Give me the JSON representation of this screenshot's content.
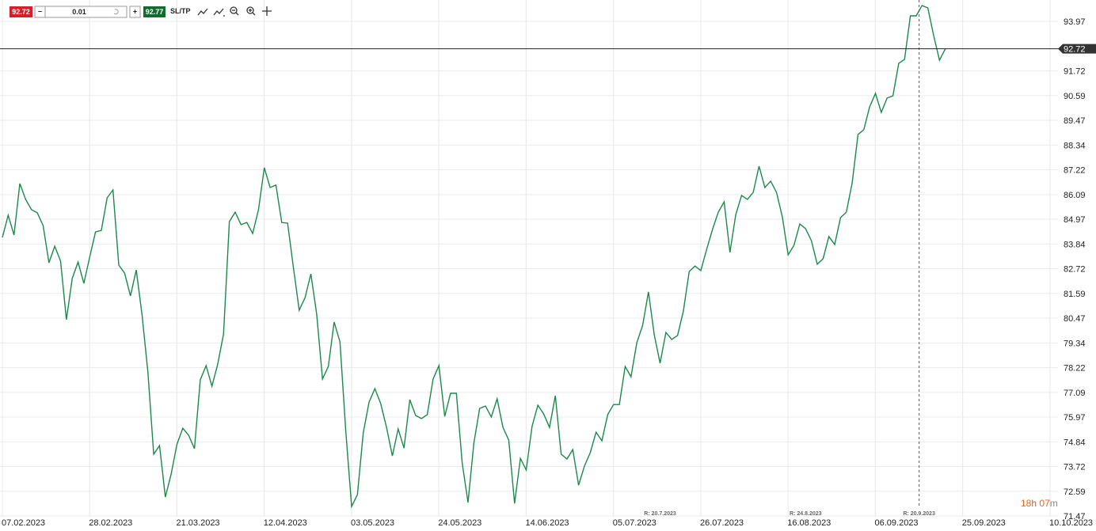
{
  "toolbar": {
    "bid": "92.72",
    "minus": "−",
    "volume": "0.01",
    "plus": "+",
    "ask": "92.77",
    "sltp": "SL/TP"
  },
  "countdown": {
    "hours": "18",
    "h": "h",
    "minutes": "07",
    "m": "m"
  },
  "chart_data": {
    "type": "line",
    "categories": [
      "07.02.2023",
      null,
      null,
      null,
      null,
      null,
      null,
      null,
      null,
      null,
      null,
      null,
      null,
      null,
      null,
      "28.02.2023",
      null,
      null,
      null,
      null,
      null,
      null,
      null,
      null,
      null,
      null,
      null,
      null,
      null,
      null,
      "21.03.2023",
      null,
      null,
      null,
      null,
      null,
      null,
      null,
      null,
      null,
      null,
      null,
      null,
      null,
      null,
      "12.04.2023",
      null,
      null,
      null,
      null,
      null,
      null,
      null,
      null,
      null,
      null,
      null,
      null,
      null,
      null,
      "03.05.2023",
      null,
      null,
      null,
      null,
      null,
      null,
      null,
      null,
      null,
      null,
      null,
      null,
      null,
      null,
      "24.05.2023",
      null,
      null,
      null,
      null,
      null,
      null,
      null,
      null,
      null,
      null,
      null,
      null,
      null,
      null,
      "14.06.2023",
      null,
      null,
      null,
      null,
      null,
      null,
      null,
      null,
      null,
      null,
      null,
      null,
      null,
      null,
      "05.07.2023",
      null,
      null,
      null,
      null,
      null,
      null,
      null,
      null,
      null,
      null,
      null,
      null,
      null,
      null,
      "26.07.2023",
      null,
      null,
      null,
      null,
      null,
      null,
      null,
      null,
      null,
      null,
      null,
      null,
      null,
      null,
      "16.08.2023",
      null,
      null,
      null,
      null,
      null,
      null,
      null,
      null,
      null,
      null,
      null,
      null,
      null,
      null,
      "06.09.2023",
      null,
      null,
      null,
      null,
      null,
      null,
      null,
      null,
      null,
      null,
      null,
      null,
      null,
      null,
      "25.09.2023",
      null,
      null,
      null,
      null,
      null,
      null,
      null,
      null,
      null,
      null,
      null,
      null,
      null,
      null,
      "10.10.2023"
    ],
    "series": [
      {
        "color": "#1a8a4a",
        "values": [
          84.14,
          85.15,
          84.25,
          86.59,
          85.87,
          85.4,
          85.26,
          84.68,
          82.99,
          83.74,
          83.06,
          80.4,
          82.27,
          83.02,
          82.05,
          83.24,
          84.39,
          84.46,
          85.94,
          86.3,
          82.88,
          82.52,
          81.48,
          82.66,
          80.61,
          78.02,
          74.28,
          74.67,
          72.33,
          73.38,
          74.74,
          75.46,
          75.14,
          74.53,
          77.66,
          78.31,
          77.37,
          78.38,
          79.75,
          84.86,
          85.29,
          84.72,
          84.82,
          84.32,
          85.4,
          87.31,
          86.41,
          86.52,
          84.82,
          84.79,
          82.77,
          80.83,
          81.4,
          82.48,
          80.65,
          77.7,
          78.27,
          80.29,
          79.39,
          75.32,
          71.9,
          72.44,
          75.25,
          76.65,
          77.26,
          76.58,
          75.5,
          74.2,
          75.43,
          74.56,
          76.76,
          76.04,
          75.9,
          76.08,
          77.7,
          78.31,
          76.0,
          77.05,
          77.05,
          73.88,
          72.08,
          74.78,
          76.36,
          76.47,
          75.97,
          76.8,
          75.5,
          74.92,
          72.04,
          74.09,
          73.56,
          75.54,
          76.51,
          76.11,
          75.5,
          76.94,
          74.28,
          74.06,
          74.49,
          72.87,
          73.74,
          74.35,
          75.28,
          74.89,
          76.08,
          76.54,
          76.54,
          78.27,
          77.8,
          79.35,
          80.14,
          81.66,
          79.71,
          78.42,
          79.82,
          79.5,
          79.68,
          80.79,
          82.59,
          82.84,
          82.63,
          83.6,
          84.5,
          85.29,
          85.76,
          83.46,
          85.18,
          86.05,
          85.87,
          86.19,
          87.38,
          86.41,
          86.7,
          86.19,
          85.08,
          83.35,
          83.78,
          84.75,
          84.54,
          83.99,
          82.92,
          83.17,
          84.18,
          83.82,
          85.04,
          85.29,
          86.62,
          88.82,
          89.04,
          90.08,
          90.69,
          89.83,
          90.48,
          90.58,
          92.06,
          92.24,
          94.22,
          94.22,
          94.69,
          94.58,
          93.32,
          92.2,
          92.72,
          null,
          null,
          null,
          null,
          null,
          null,
          null,
          null,
          null,
          null,
          null,
          null,
          null,
          null,
          null,
          null,
          null,
          null
        ]
      }
    ],
    "ylim": [
      71.47,
      94.94
    ],
    "yticks": [
      93.97,
      91.72,
      90.59,
      89.47,
      88.34,
      87.22,
      86.09,
      84.97,
      83.84,
      82.72,
      81.59,
      80.47,
      79.34,
      78.22,
      77.09,
      75.97,
      74.84,
      73.72,
      72.59,
      71.47
    ],
    "current_price": 92.72,
    "grid": true,
    "annotations": [
      "R: 20.7.2023",
      "R: 24.8.2023",
      "R: 20.9.2023"
    ]
  }
}
